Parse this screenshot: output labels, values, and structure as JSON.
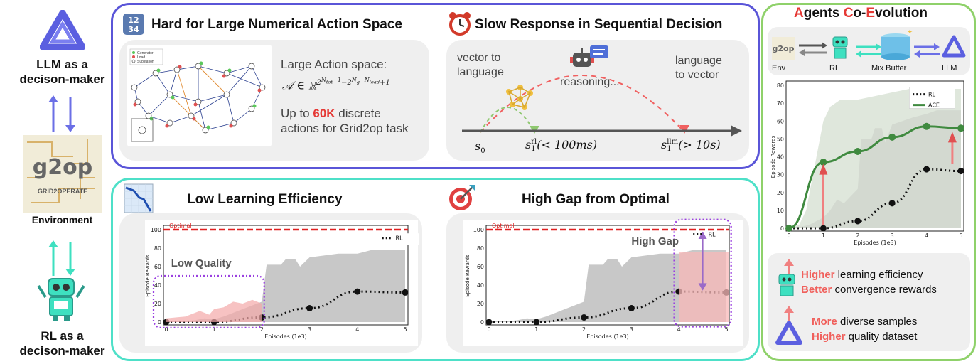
{
  "left": {
    "llm_label": "LLM as a\ndecison-maker",
    "env_label": "Environment",
    "rl_label": "RL as a\ndecison-maker",
    "env_logo_text": "g2op",
    "env_logo_sub": "GRID2OPERATE"
  },
  "top_left": {
    "title": "Hard for Large Numerical Action Space",
    "icon_text": "12\n34",
    "line1": "Large Action space:",
    "line3_pre": "Up to ",
    "line3_hl": "60K",
    "line3_post": " discrete",
    "line4": "actions for Grid2op task",
    "legend": [
      "Generator",
      "Load",
      "Substation"
    ]
  },
  "top_right": {
    "title": "Slow Response in Sequential Decision",
    "left_label": "vector to\nlanguage",
    "mid_label": "reasoning...",
    "right_label": "language\nto vector",
    "s0": "s",
    "s0_sub": "0",
    "srl": "s",
    "srl_sup": "rl",
    "srl_sub": "1",
    "srl_post": "(< 100ms)",
    "sllm": "s",
    "sllm_sup": "llm",
    "sllm_sub": "1",
    "sllm_post": "(> 10s)"
  },
  "bottom_left": {
    "title": "Low Learning Efficiency",
    "annotation": "Low Quality",
    "optimal": "Optimal",
    "legend_rl": "RL",
    "ylabel": "Episode Rewards",
    "xlabel": "Episodes (1e3)",
    "yticks": [
      "0",
      "20",
      "40",
      "60",
      "80",
      "100"
    ],
    "xticks": [
      "0",
      "1",
      "2",
      "3",
      "4",
      "5"
    ]
  },
  "bottom_right": {
    "title": "High Gap from Optimal",
    "annotation": "High Gap",
    "optimal": "Optimal",
    "legend_rl": "RL",
    "ylabel": "Episode Rewards",
    "xlabel": "Episodes (1e3)",
    "yticks": [
      "0",
      "20",
      "40",
      "60",
      "80",
      "100"
    ],
    "xticks": [
      "0",
      "1",
      "2",
      "3",
      "4",
      "5"
    ]
  },
  "right": {
    "title_parts": [
      "A",
      "gents ",
      "C",
      "o-",
      "E",
      "volution"
    ],
    "flow": [
      "Env",
      "RL",
      "Mix Buffer",
      "LLM"
    ],
    "ylabel": "Episode Rewards",
    "xlabel": "Episodes (1e3)",
    "legend": [
      "RL",
      "ACE"
    ],
    "yticks": [
      "0",
      "10",
      "20",
      "30",
      "40",
      "50",
      "60",
      "70",
      "80"
    ],
    "xticks": [
      "0",
      "1",
      "2",
      "3",
      "4",
      "5"
    ],
    "b1_hl": "Higher",
    "b1_rest": " learning efficiency",
    "b2_hl": "Better",
    "b2_rest": " convergence rewards",
    "b3_hl": "More",
    "b3_rest": " diverse samples",
    "b4_hl": "Higher",
    "b4_rest": " quality dataset"
  },
  "chart_data": [
    {
      "type": "line",
      "title": "Low Learning Efficiency",
      "xlabel": "Episodes (1e3)",
      "ylabel": "Episode Rewards",
      "xlim": [
        0,
        5
      ],
      "ylim": [
        0,
        100
      ],
      "optimal": 100,
      "series": [
        {
          "name": "RL",
          "x": [
            0,
            1,
            2,
            3,
            4,
            5
          ],
          "y": [
            0,
            0,
            5,
            15,
            33,
            32
          ]
        }
      ]
    },
    {
      "type": "line",
      "title": "High Gap from Optimal",
      "xlabel": "Episodes (1e3)",
      "ylabel": "Episode Rewards",
      "xlim": [
        0,
        5
      ],
      "ylim": [
        0,
        100
      ],
      "optimal": 100,
      "series": [
        {
          "name": "RL",
          "x": [
            0,
            1,
            2,
            3,
            4,
            5
          ],
          "y": [
            0,
            0,
            5,
            15,
            33,
            32
          ]
        }
      ]
    },
    {
      "type": "line",
      "xlabel": "Episodes (1e3)",
      "ylabel": "Episode Rewards",
      "xlim": [
        0,
        5
      ],
      "ylim": [
        0,
        80
      ],
      "series": [
        {
          "name": "RL",
          "x": [
            0,
            1,
            2,
            3,
            4,
            5
          ],
          "y": [
            0,
            0,
            4,
            14,
            33,
            32
          ]
        },
        {
          "name": "ACE",
          "x": [
            0,
            1,
            2,
            3,
            4,
            5
          ],
          "y": [
            0,
            37,
            43,
            51,
            57,
            56
          ]
        }
      ]
    }
  ]
}
